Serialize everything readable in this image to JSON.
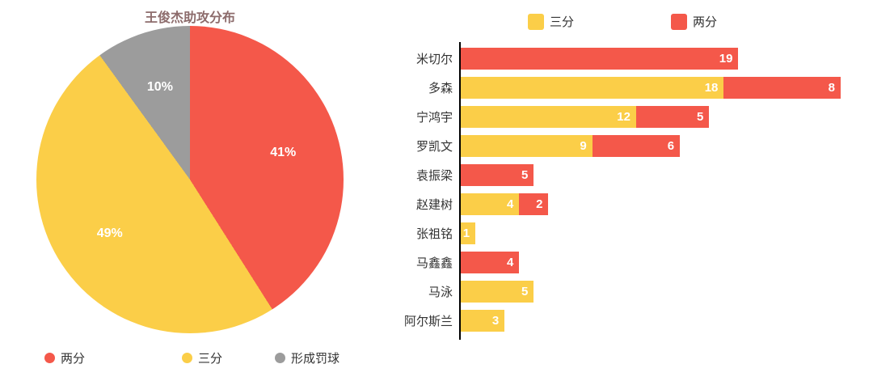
{
  "colors": {
    "two_point": "#F4584A",
    "three_point": "#FBCE48",
    "free_throw": "#9C9C9C",
    "value_label": "#FFFFFF",
    "axis": "#000000",
    "title": "#8D6C6C"
  },
  "chart_data": [
    {
      "type": "pie",
      "title": "王俊杰助攻分布",
      "labels": [
        "两分",
        "三分",
        "形成罚球"
      ],
      "values": [
        41,
        49,
        10
      ],
      "data_labels": [
        "41%",
        "49%",
        "10%"
      ],
      "colors": [
        "#F4584A",
        "#FBCE48",
        "#9C9C9C"
      ],
      "start_angle": "top",
      "direction": "clockwise",
      "legend_position": "bottom"
    },
    {
      "type": "bar",
      "orientation": "horizontal",
      "stacked": true,
      "categories": [
        "米切尔",
        "多森",
        "宁鸿宇",
        "罗凯文",
        "袁振梁",
        "赵建树",
        "张祖铭",
        "马鑫鑫",
        "马泳",
        "阿尔斯兰"
      ],
      "series": [
        {
          "name": "三分",
          "color": "#FBCE48",
          "values": [
            0,
            18,
            12,
            9,
            0,
            4,
            1,
            0,
            5,
            3
          ]
        },
        {
          "name": "两分",
          "color": "#F4584A",
          "values": [
            19,
            8,
            5,
            6,
            5,
            2,
            0,
            4,
            0,
            0
          ]
        }
      ],
      "xlim": [
        0,
        26
      ],
      "value_labels": true,
      "legend_position": "top",
      "grid": false
    }
  ],
  "pie_legend_offsets": [
    55,
    225,
    340
  ]
}
